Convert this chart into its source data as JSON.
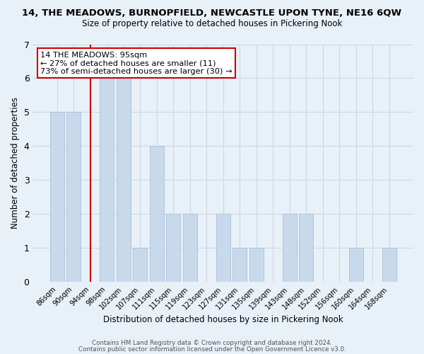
{
  "title": "14, THE MEADOWS, BURNOPFIELD, NEWCASTLE UPON TYNE, NE16 6QW",
  "subtitle": "Size of property relative to detached houses in Pickering Nook",
  "xlabel": "Distribution of detached houses by size in Pickering Nook",
  "ylabel": "Number of detached properties",
  "bin_labels": [
    "86sqm",
    "90sqm",
    "94sqm",
    "98sqm",
    "102sqm",
    "107sqm",
    "111sqm",
    "115sqm",
    "119sqm",
    "123sqm",
    "127sqm",
    "131sqm",
    "135sqm",
    "139sqm",
    "143sqm",
    "148sqm",
    "152sqm",
    "156sqm",
    "160sqm",
    "164sqm",
    "168sqm"
  ],
  "bar_heights": [
    5,
    5,
    0,
    6,
    6,
    1,
    4,
    2,
    2,
    0,
    2,
    1,
    1,
    0,
    2,
    2,
    0,
    0,
    1,
    0,
    1
  ],
  "bar_color": "#c9d9ec",
  "bar_edgecolor": "#a8c0d8",
  "vline_x": 2,
  "vline_color": "#cc0000",
  "ylim": [
    0,
    7
  ],
  "yticks": [
    0,
    1,
    2,
    3,
    4,
    5,
    6,
    7
  ],
  "annotation_title": "14 THE MEADOWS: 95sqm",
  "annotation_line1": "← 27% of detached houses are smaller (11)",
  "annotation_line2": "73% of semi-detached houses are larger (30) →",
  "annotation_box_facecolor": "#ffffff",
  "annotation_box_edgecolor": "#cc0000",
  "grid_color": "#ccd9e8",
  "background_color": "#e8f0f8",
  "footer1": "Contains HM Land Registry data © Crown copyright and database right 2024.",
  "footer2": "Contains public sector information licensed under the Open Government Licence v3.0."
}
